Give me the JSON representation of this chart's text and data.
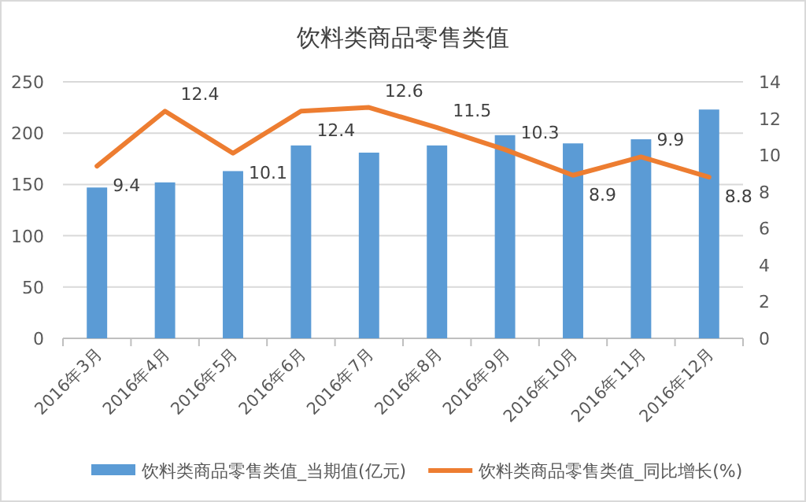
{
  "chart_data": {
    "type": "bar",
    "title": "饮料类商品零售类值",
    "categories": [
      "2016年3月",
      "2016年4月",
      "2016年5月",
      "2016年6月",
      "2016年7月",
      "2016年8月",
      "2016年9月",
      "2016年10月",
      "2016年11月",
      "2016年12月"
    ],
    "series": [
      {
        "name": "饮料类商品零售类值_当期值(亿元)",
        "color": "#5b9bd5",
        "values": [
          147,
          152,
          163,
          188,
          181,
          188,
          198,
          190,
          194,
          223
        ]
      },
      {
        "name": "饮料类商品零售类值_同比增长(%)",
        "type": "line",
        "axis": "y2",
        "color": "#ed7d31",
        "values": [
          9.4,
          12.4,
          10.1,
          12.4,
          12.6,
          11.5,
          10.3,
          8.9,
          9.9,
          8.8
        ],
        "value_labels": [
          "9.4",
          "12.4",
          "10.1",
          "12.4",
          "12.6",
          "11.5",
          "10.3",
          "8.9",
          "9.9",
          "8.8"
        ]
      }
    ],
    "ylim": [
      0,
      250
    ],
    "yticks": [
      0,
      50,
      100,
      150,
      200,
      250
    ],
    "y2lim": [
      0,
      14
    ],
    "y2ticks": [
      0,
      2,
      4,
      6,
      8,
      10,
      12,
      14
    ],
    "grid": "y",
    "legend": "bottom"
  }
}
